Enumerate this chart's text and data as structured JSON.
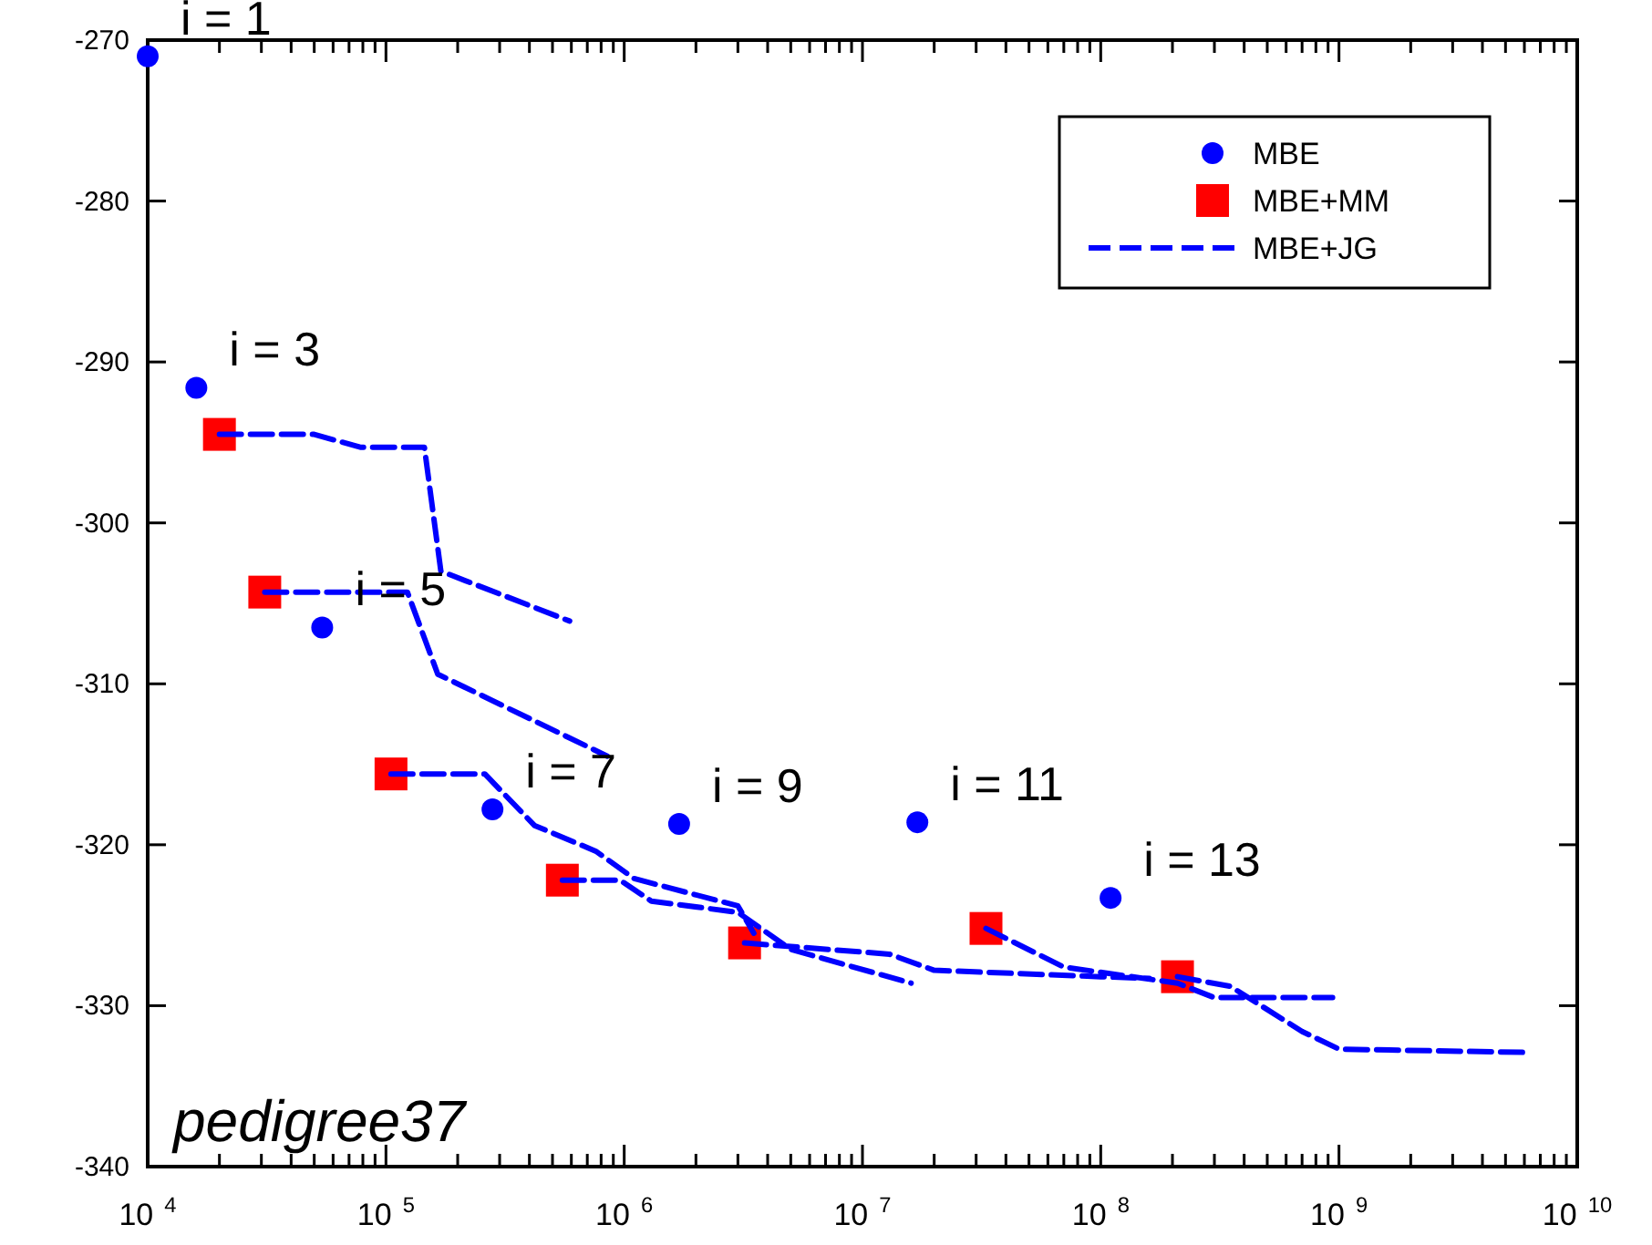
{
  "chart_data": {
    "type": "scatter",
    "log": "x",
    "legend": "top right",
    "grid": false,
    "xlim": [
      10000,
      10000000000
    ],
    "xticks": [
      {
        "value": 10000,
        "label": "10$^{4}$"
      },
      {
        "value": 20000,
        "label": null
      },
      {
        "value": 30000,
        "label": null
      },
      {
        "value": 40000,
        "label": null
      },
      {
        "value": 50000,
        "label": null
      },
      {
        "value": 60000,
        "label": null
      },
      {
        "value": 70000,
        "label": null
      },
      {
        "value": 80000,
        "label": null
      },
      {
        "value": 90000,
        "label": null
      },
      {
        "value": 100000,
        "label": "10$^{5}$"
      },
      {
        "value": 200000,
        "label": null
      },
      {
        "value": 300000,
        "label": null
      },
      {
        "value": 400000,
        "label": null
      },
      {
        "value": 500000,
        "label": null
      },
      {
        "value": 600000,
        "label": null
      },
      {
        "value": 700000,
        "label": null
      },
      {
        "value": 800000,
        "label": null
      },
      {
        "value": 900000,
        "label": null
      },
      {
        "value": 1000000,
        "label": "10$^{6}$"
      },
      {
        "value": 2000000,
        "label": null
      },
      {
        "value": 3000000,
        "label": null
      },
      {
        "value": 4000000,
        "label": null
      },
      {
        "value": 5000000,
        "label": null
      },
      {
        "value": 6000000,
        "label": null
      },
      {
        "value": 7000000,
        "label": null
      },
      {
        "value": 8000000,
        "label": null
      },
      {
        "value": 9000000,
        "label": null
      },
      {
        "value": 10000000,
        "label": "10$^{7}$"
      },
      {
        "value": 20000000,
        "label": null
      },
      {
        "value": 30000000,
        "label": null
      },
      {
        "value": 40000000,
        "label": null
      },
      {
        "value": 50000000,
        "label": null
      },
      {
        "value": 60000000,
        "label": null
      },
      {
        "value": 70000000,
        "label": null
      },
      {
        "value": 80000000,
        "label": null
      },
      {
        "value": 90000000,
        "label": null
      },
      {
        "value": 100000000,
        "label": "10$^{8}$"
      },
      {
        "value": 200000000,
        "label": null
      },
      {
        "value": 300000000,
        "label": null
      },
      {
        "value": 400000000,
        "label": null
      },
      {
        "value": 500000000,
        "label": null
      },
      {
        "value": 600000000,
        "label": null
      },
      {
        "value": 700000000,
        "label": null
      },
      {
        "value": 800000000,
        "label": null
      },
      {
        "value": 900000000,
        "label": null
      },
      {
        "value": 1000000000,
        "label": "10$^{9}$"
      },
      {
        "value": 2000000000,
        "label": null
      },
      {
        "value": 3000000000,
        "label": null
      },
      {
        "value": 4000000000,
        "label": null
      },
      {
        "value": 5000000000,
        "label": null
      },
      {
        "value": 6000000000,
        "label": null
      },
      {
        "value": 7000000000,
        "label": null
      },
      {
        "value": 8000000000,
        "label": null
      },
      {
        "value": 9000000000,
        "label": null
      },
      {
        "value": 10000000000,
        "label": "10$^{10}$"
      }
    ],
    "ylim": [
      -340,
      -270
    ],
    "yticks": [
      -340,
      -330,
      -320,
      -310,
      -300,
      -290,
      -280,
      -270
    ],
    "series": [
      {
        "name": "MBE",
        "marker": "circle",
        "color": "#0000ff",
        "x": [
          10000,
          16000,
          54000,
          280000,
          1700000,
          17000000,
          110000000
        ],
        "values": [
          -271,
          -291.6,
          -306.5,
          -317.8,
          -318.7,
          -318.6,
          -323.3
        ]
      },
      {
        "name": "MBE+MM",
        "marker": "square",
        "color": "#ff0000",
        "x": [
          20000,
          31000,
          105000,
          550000,
          3200000,
          33000000,
          210000000
        ],
        "values": [
          -294.5,
          -304.3,
          -315.6,
          -322.2,
          -326.1,
          -325.2,
          -328.2
        ]
      },
      {
        "name": "MBE+JG",
        "type": "line",
        "marker": "none",
        "line_style": "dashed",
        "color": "#0000ff",
        "x": [
          20000,
          50000,
          78000,
          145000,
          170000,
          590000,
          null,
          31000,
          123000,
          165000,
          850000,
          null,
          105000,
          260000,
          420000,
          760000,
          1100000,
          3000000,
          3500000,
          null,
          550000,
          960000,
          1300000,
          3000000,
          5000000,
          16000000,
          null,
          3200000,
          13000000,
          20000000,
          100000000,
          160000000,
          null,
          33000000,
          70000000,
          210000000,
          300000000,
          940000000,
          null,
          210000000,
          350000000,
          700000000,
          1000000000,
          6000000000
        ],
        "values": [
          -294.5,
          -294.5,
          -295.3,
          -295.3,
          -303,
          -306.1,
          null,
          -304.3,
          -304.3,
          -309.4,
          -314.5,
          null,
          -315.6,
          -315.6,
          -318.8,
          -320.4,
          -322.1,
          -323.8,
          -325.5,
          null,
          -322.2,
          -322.2,
          -323.5,
          -324.2,
          -326.5,
          -328.6,
          null,
          -326.1,
          -326.8,
          -327.8,
          -328.2,
          -328.3,
          null,
          -325.2,
          -327.6,
          -328.6,
          -329.5,
          -329.5,
          null,
          -328.2,
          -328.8,
          -331.6,
          -332.7,
          -332.9
        ]
      }
    ],
    "annotations": [
      {
        "text": "i = 1",
        "x": 10000,
        "y": -271
      },
      {
        "text": "i = 3",
        "x": 16000,
        "y": -291.6
      },
      {
        "text": "i = 5",
        "x": 54000,
        "y": -306.5
      },
      {
        "text": "i = 7",
        "x": 280000,
        "y": -317.8
      },
      {
        "text": "i = 9",
        "x": 1700000,
        "y": -318.7
      },
      {
        "text": "i = 11",
        "x": 17000000,
        "y": -318.6
      },
      {
        "text": "i = 13",
        "x": 110000000,
        "y": -323.3
      },
      "pedigree37"
    ]
  }
}
